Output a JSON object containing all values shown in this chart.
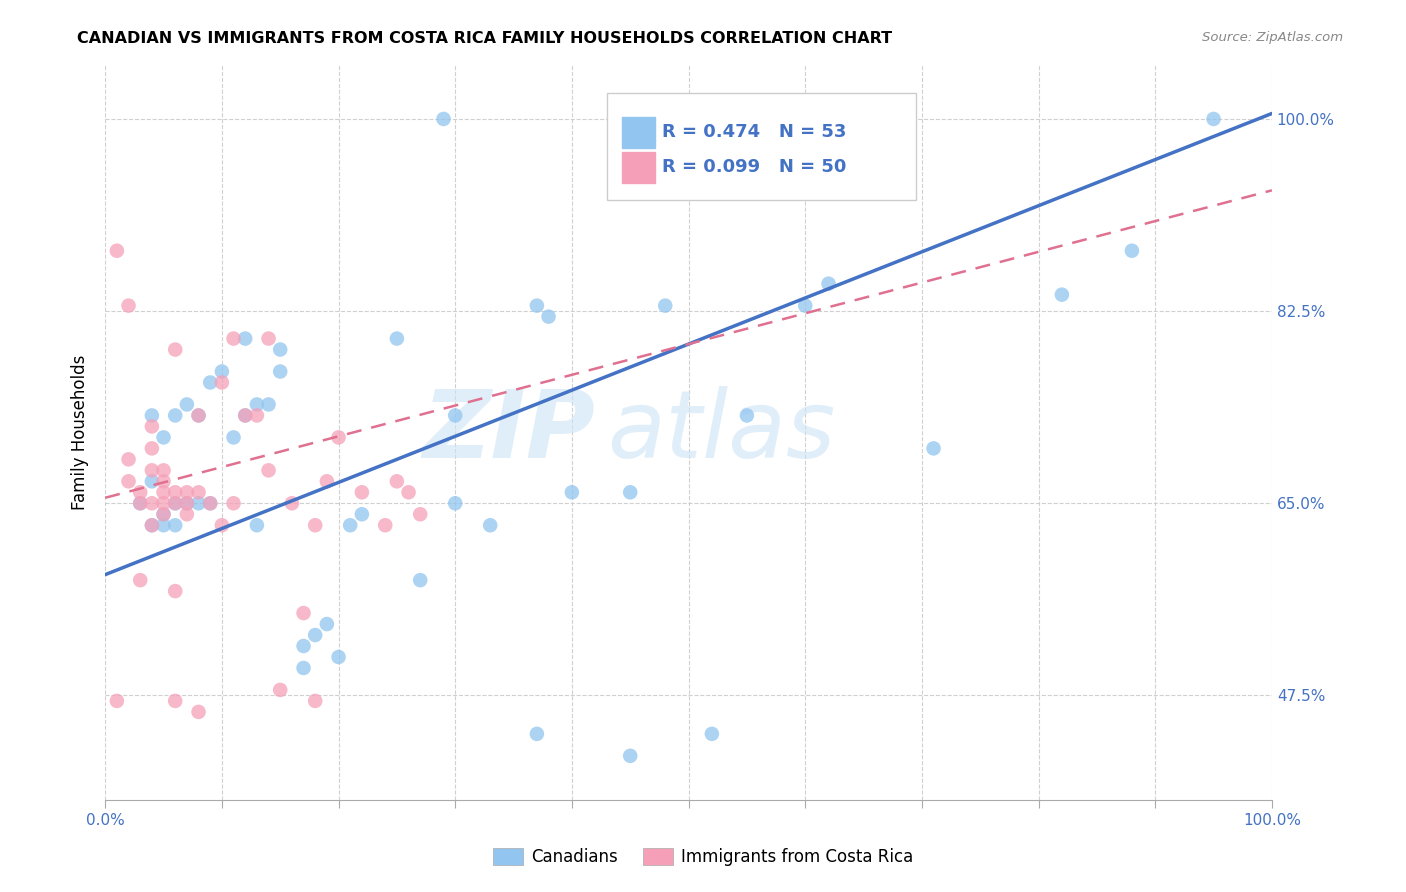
{
  "title": "CANADIAN VS IMMIGRANTS FROM COSTA RICA FAMILY HOUSEHOLDS CORRELATION CHART",
  "source": "Source: ZipAtlas.com",
  "ylabel": "Family Households",
  "ytick_labels": [
    "100.0%",
    "82.5%",
    "65.0%",
    "47.5%"
  ],
  "ytick_values": [
    1.0,
    0.825,
    0.65,
    0.475
  ],
  "xlim": [
    0.0,
    1.0
  ],
  "ylim": [
    0.38,
    1.05
  ],
  "legend_r_canadian": "R = 0.474",
  "legend_n_canadian": "N = 53",
  "legend_r_costa_rica": "R = 0.099",
  "legend_n_costa_rica": "N = 50",
  "canadian_color": "#92c5f0",
  "costa_rica_color": "#f5a0b8",
  "canadian_line_color": "#4472c4",
  "costa_rica_line_color": "#e07090",
  "watermark_zip": "ZIP",
  "watermark_atlas": "atlas",
  "canadians_x": [
    0.03,
    0.04,
    0.04,
    0.05,
    0.05,
    0.06,
    0.06,
    0.07,
    0.07,
    0.08,
    0.08,
    0.09,
    0.09,
    0.1,
    0.11,
    0.12,
    0.12,
    0.13,
    0.13,
    0.14,
    0.15,
    0.17,
    0.17,
    0.18,
    0.19,
    0.2,
    0.21,
    0.22,
    0.27,
    0.29,
    0.3,
    0.33,
    0.37,
    0.38,
    0.4,
    0.45,
    0.48,
    0.55,
    0.6,
    0.62,
    0.71,
    0.82,
    0.88,
    0.95,
    0.04,
    0.05,
    0.06,
    0.15,
    0.25,
    0.3,
    0.37,
    0.45,
    0.52
  ],
  "canadians_y": [
    0.65,
    0.67,
    0.73,
    0.64,
    0.71,
    0.65,
    0.73,
    0.65,
    0.74,
    0.65,
    0.73,
    0.65,
    0.76,
    0.77,
    0.71,
    0.73,
    0.8,
    0.63,
    0.74,
    0.74,
    0.77,
    0.5,
    0.52,
    0.53,
    0.54,
    0.51,
    0.63,
    0.64,
    0.58,
    1.0,
    0.65,
    0.63,
    0.44,
    0.82,
    0.66,
    0.42,
    0.83,
    0.73,
    0.83,
    0.85,
    0.7,
    0.84,
    0.88,
    1.0,
    0.63,
    0.63,
    0.63,
    0.79,
    0.8,
    0.73,
    0.83,
    0.66,
    0.44
  ],
  "costa_rica_x": [
    0.01,
    0.01,
    0.02,
    0.02,
    0.02,
    0.03,
    0.03,
    0.03,
    0.04,
    0.04,
    0.04,
    0.04,
    0.04,
    0.05,
    0.05,
    0.05,
    0.05,
    0.05,
    0.06,
    0.06,
    0.06,
    0.06,
    0.06,
    0.07,
    0.07,
    0.07,
    0.08,
    0.08,
    0.08,
    0.09,
    0.1,
    0.1,
    0.11,
    0.11,
    0.12,
    0.13,
    0.14,
    0.14,
    0.15,
    0.16,
    0.17,
    0.18,
    0.18,
    0.19,
    0.2,
    0.22,
    0.24,
    0.25,
    0.26,
    0.27
  ],
  "costa_rica_y": [
    0.88,
    0.47,
    0.67,
    0.69,
    0.83,
    0.58,
    0.65,
    0.66,
    0.63,
    0.65,
    0.68,
    0.7,
    0.72,
    0.64,
    0.65,
    0.66,
    0.67,
    0.68,
    0.47,
    0.57,
    0.65,
    0.66,
    0.79,
    0.64,
    0.65,
    0.66,
    0.46,
    0.66,
    0.73,
    0.65,
    0.63,
    0.76,
    0.65,
    0.8,
    0.73,
    0.73,
    0.68,
    0.8,
    0.48,
    0.65,
    0.55,
    0.47,
    0.63,
    0.67,
    0.71,
    0.66,
    0.63,
    0.67,
    0.66,
    0.64
  ],
  "canadian_trend_x": [
    0.0,
    1.0
  ],
  "canadian_trend_y": [
    0.585,
    1.005
  ],
  "costa_rica_trend_x": [
    0.0,
    1.0
  ],
  "costa_rica_trend_y": [
    0.655,
    0.935
  ],
  "grid_color": "#d0d0d0",
  "xtick_positions": [
    0.0,
    0.1,
    0.2,
    0.3,
    0.4,
    0.5,
    0.6,
    0.7,
    0.8,
    0.9,
    1.0
  ],
  "title_fontsize": 11.5,
  "tick_fontsize": 11,
  "ylabel_fontsize": 12
}
